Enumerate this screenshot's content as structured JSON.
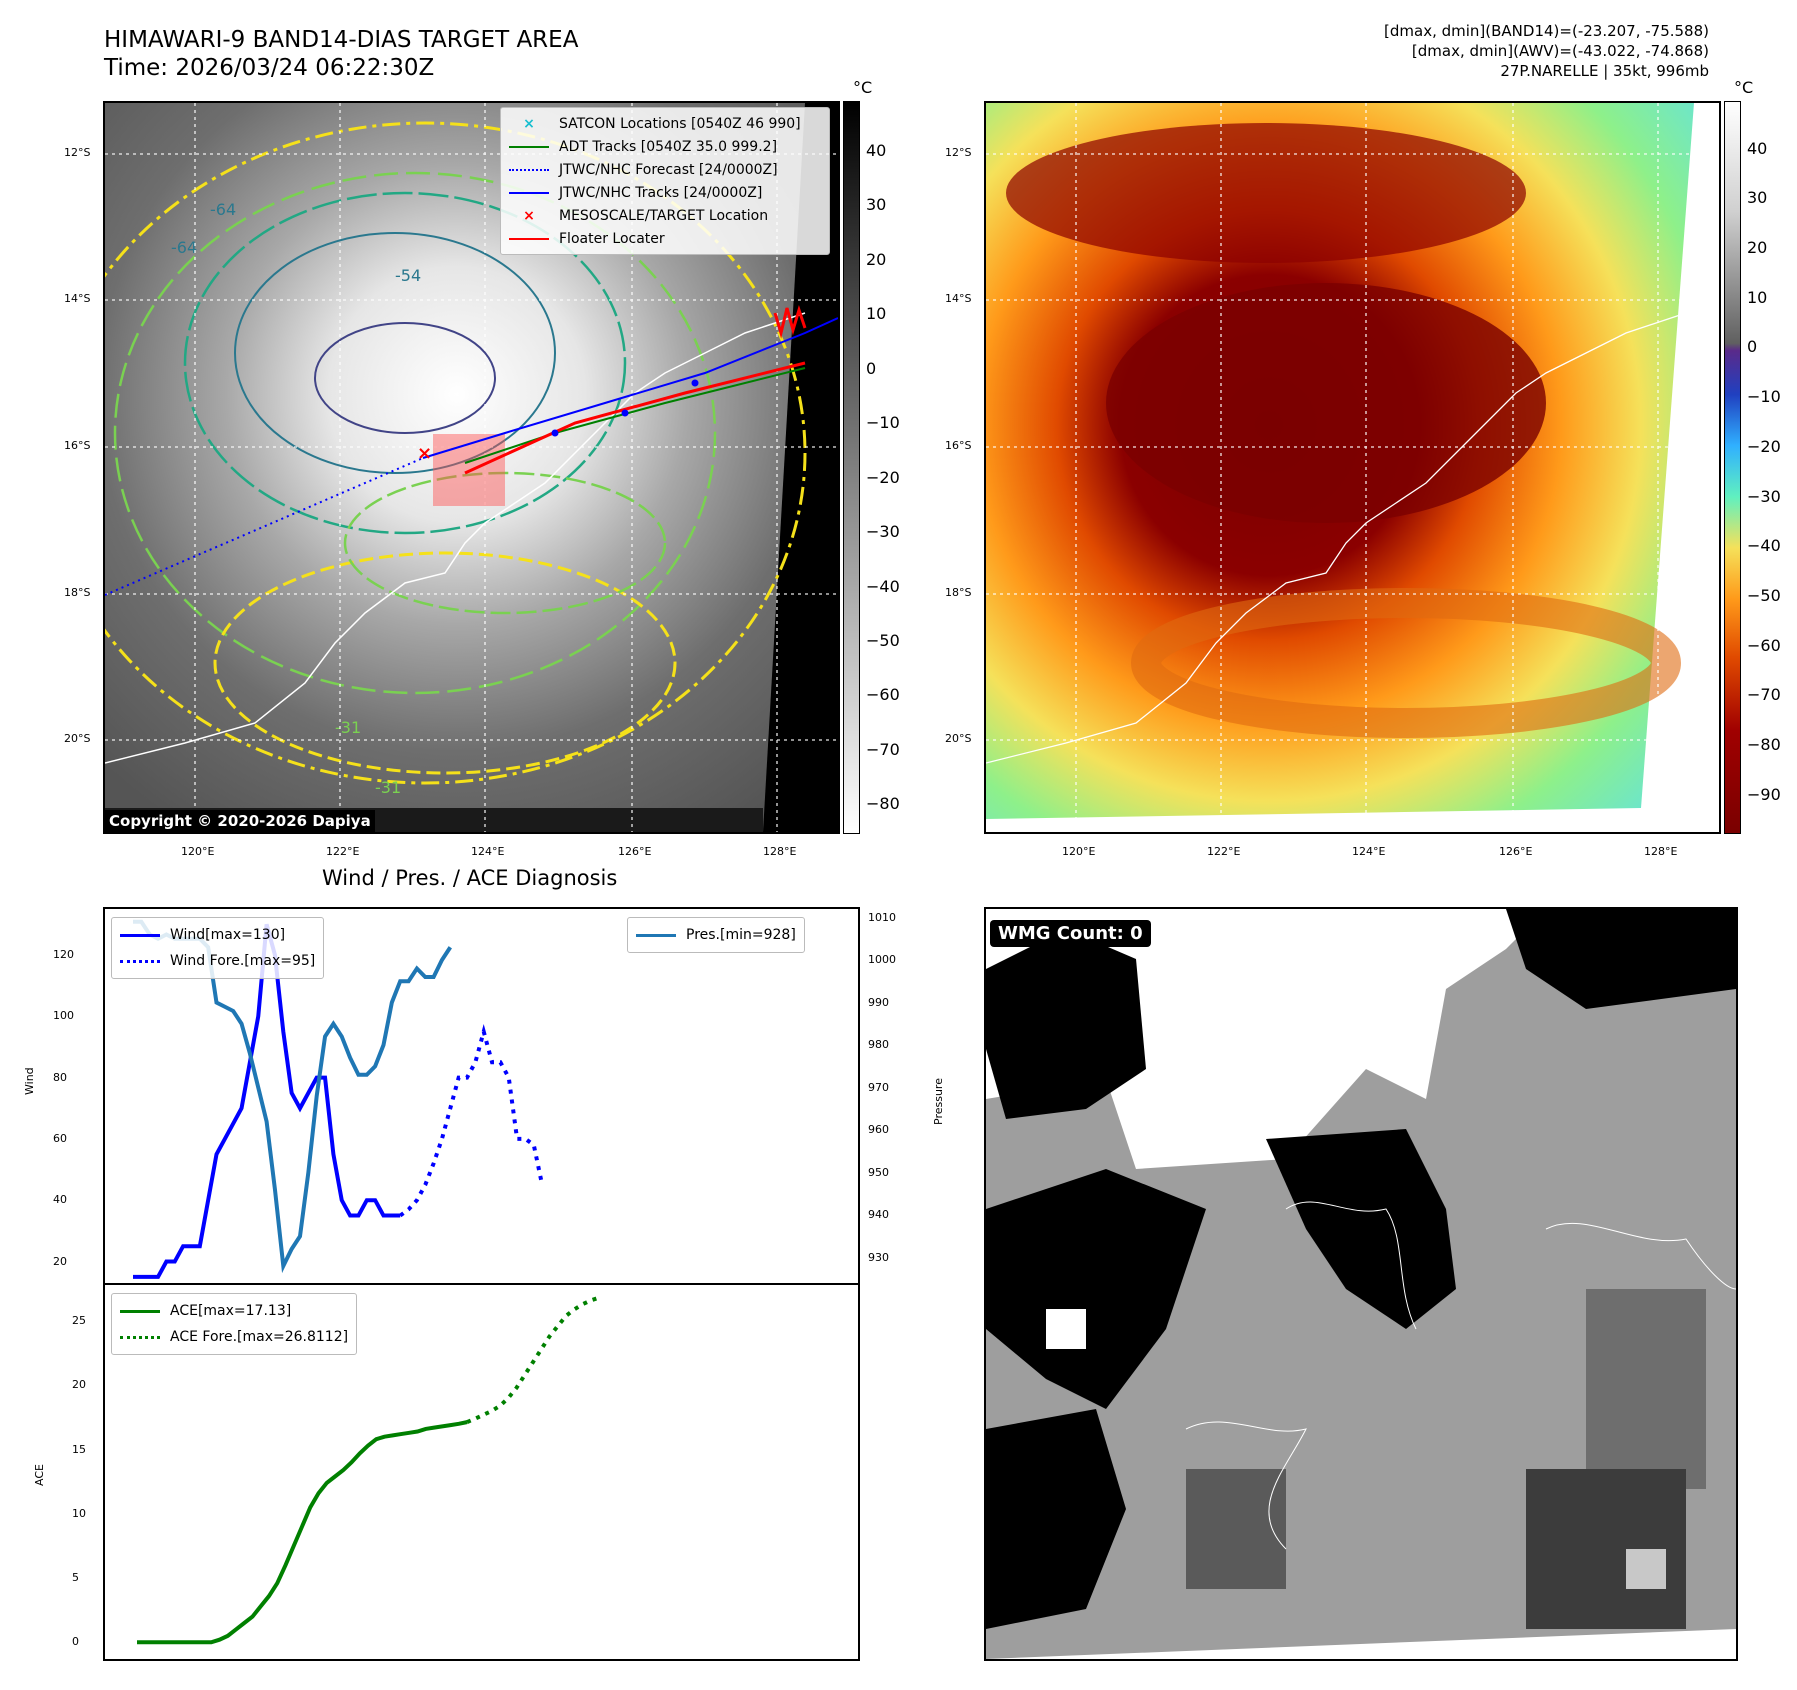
{
  "header": {
    "title_line1": "HIMAWARI-9 BAND14-DIAS TARGET AREA",
    "title_line2": "Time: 2026/03/24 06:22:30Z",
    "info_line1": "[dmax, dmin](BAND14)=(-23.207, -75.588)",
    "info_line2": "[dmax, dmin](AWV)=(-43.022, -74.868)",
    "info_line3": "27P.NARELLE | 35kt, 996mb"
  },
  "maps": {
    "lat_labels": [
      "12°S",
      "14°S",
      "16°S",
      "18°S",
      "20°S"
    ],
    "lon_labels": [
      "120°E",
      "122°E",
      "124°E",
      "126°E",
      "128°E"
    ],
    "unit": "°C",
    "copyright": "Copyright © 2020-2026 Dapiya",
    "contour_labels": [
      "-64",
      "-64",
      "-54",
      "-31",
      "-31"
    ]
  },
  "left_colorbar": {
    "ticks": [
      "40",
      "30",
      "20",
      "10",
      "0",
      "−10",
      "−20",
      "−30",
      "−40",
      "−50",
      "−60",
      "−70",
      "−80"
    ]
  },
  "right_colorbar": {
    "ticks": [
      "40",
      "30",
      "20",
      "10",
      "0",
      "−10",
      "−20",
      "−30",
      "−40",
      "−50",
      "−60",
      "−70",
      "−80",
      "−90"
    ]
  },
  "legend": {
    "items": [
      {
        "label": "SATCON Locations [0540Z 46 990]",
        "color": "#17becf",
        "style": "x"
      },
      {
        "label": "ADT Tracks [0540Z 35.0 999.2]",
        "color": "#008000",
        "style": "solid"
      },
      {
        "label": "JTWC/NHC Forecast [24/0000Z]",
        "color": "#0000ff",
        "style": "dotted"
      },
      {
        "label": "JTWC/NHC Tracks [24/0000Z]",
        "color": "#0000ff",
        "style": "dot-line"
      },
      {
        "label": "MESOSCALE/TARGET Location",
        "color": "#ff0000",
        "style": "x"
      },
      {
        "label": "Floater Locater",
        "color": "#ff0000",
        "style": "solid"
      }
    ]
  },
  "wmg": {
    "label": "WMG Count: 0"
  },
  "chart_data": [
    {
      "type": "line",
      "title": "Wind / Pres. / ACE Diagnosis",
      "ylabel": "Wind",
      "ylabel_right": "Pressure",
      "ylim": [
        13,
        135
      ],
      "ylim_right": [
        924,
        1012
      ],
      "yticks": [
        20,
        40,
        60,
        80,
        100,
        120
      ],
      "yticks_right": [
        930,
        940,
        950,
        960,
        970,
        980,
        990,
        1000,
        1010
      ],
      "series": [
        {
          "name": "Wind[max=130]",
          "color": "#0000ff",
          "style": "solid",
          "axis": "left",
          "values": [
            15,
            15,
            15,
            15,
            20,
            20,
            25,
            25,
            25,
            40,
            55,
            60,
            65,
            70,
            85,
            100,
            130,
            120,
            95,
            75,
            70,
            75,
            80,
            80,
            55,
            40,
            35,
            35,
            40,
            40,
            35,
            35,
            35
          ]
        },
        {
          "name": "Wind Fore.[max=95]",
          "color": "#0000ff",
          "style": "dotted",
          "axis": "left",
          "start_index": 32,
          "values": [
            35,
            37,
            40,
            45,
            52,
            60,
            70,
            80,
            80,
            85,
            95,
            85,
            85,
            80,
            60,
            60,
            58,
            45
          ]
        },
        {
          "name": "Pres.[min=928]",
          "color": "#1f77b4",
          "style": "solid",
          "axis": "right",
          "values": [
            1009,
            1009,
            1006,
            1005,
            1006,
            1005,
            1005,
            1005,
            1005,
            1003,
            990,
            989,
            988,
            985,
            978,
            970,
            962,
            946,
            928,
            932,
            935,
            950,
            968,
            982,
            985,
            982,
            977,
            973,
            973,
            975,
            980,
            990,
            995,
            995,
            998,
            996,
            996,
            1000,
            1003
          ]
        }
      ]
    },
    {
      "type": "line",
      "ylabel": "ACE",
      "ylim": [
        -1.3,
        27.8
      ],
      "yticks": [
        0,
        5,
        10,
        15,
        20,
        25
      ],
      "series": [
        {
          "name": "ACE[max=17.13]",
          "color": "#008000",
          "style": "solid",
          "values": [
            0,
            0,
            0,
            0,
            0,
            0,
            0,
            0,
            0,
            0,
            0.2,
            0.5,
            1,
            1.5,
            2,
            2.8,
            3.6,
            4.6,
            6,
            7.5,
            9,
            10.5,
            11.6,
            12.4,
            12.9,
            13.4,
            14,
            14.7,
            15.3,
            15.8,
            16,
            16.1,
            16.2,
            16.3,
            16.4,
            16.6,
            16.7,
            16.8,
            16.9,
            17.0,
            17.13
          ]
        },
        {
          "name": "ACE Fore.[max=26.8112]",
          "color": "#008000",
          "style": "dotted",
          "start_index": 40,
          "values": [
            17.13,
            17.4,
            17.7,
            18,
            18.4,
            19,
            19.8,
            20.8,
            21.8,
            22.8,
            23.8,
            24.6,
            25.4,
            25.9,
            26.3,
            26.6,
            26.8112
          ]
        }
      ]
    }
  ]
}
